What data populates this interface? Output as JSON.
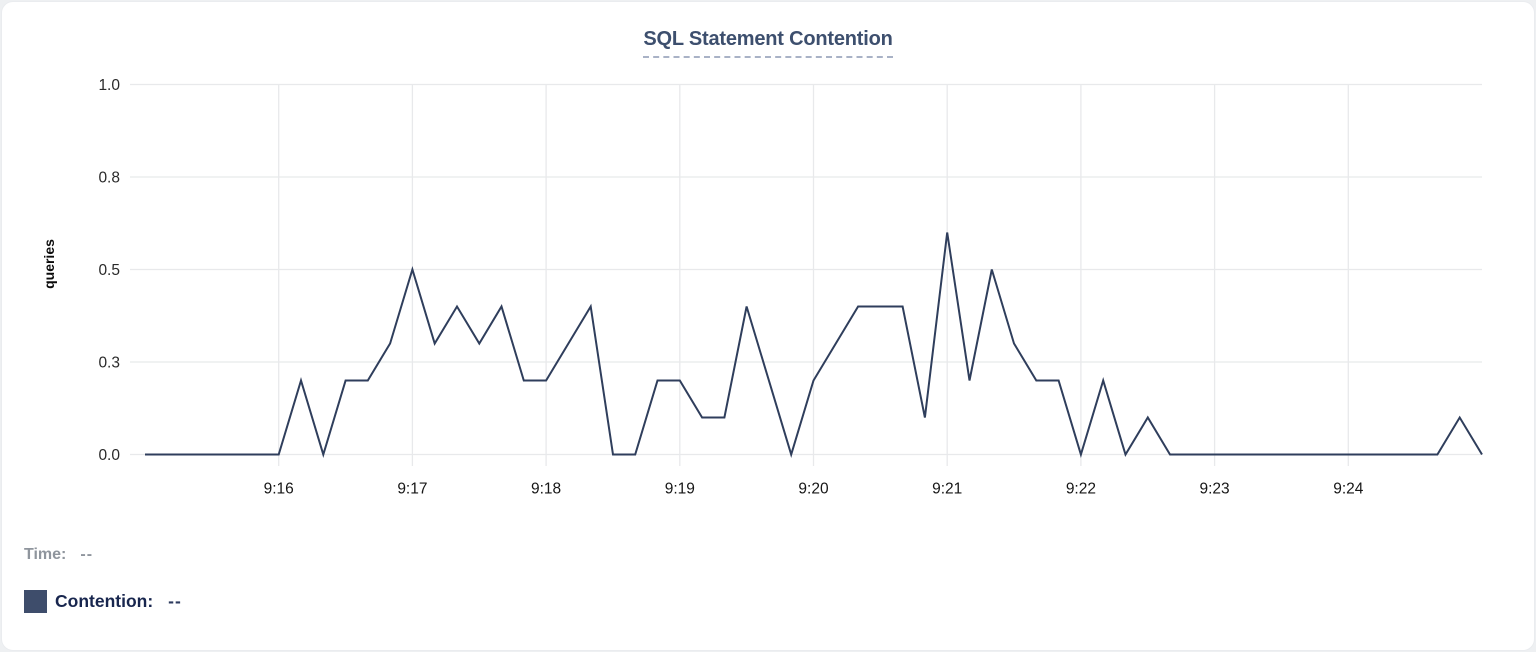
{
  "title": {
    "text": "SQL Statement Contention"
  },
  "tooltip": {
    "time_label": "Time:",
    "time_value": "--",
    "series_label": "Contention:",
    "series_value": "--",
    "swatch_color": "#3e4d6b"
  },
  "colors": {
    "line": "#2f3e5c",
    "grid": "#e8e9eb",
    "title": "#3d4f6e",
    "title_underline": "#a9b2c6",
    "y_tick_text": "#2a2a2a",
    "x_tick_text": "#161616"
  },
  "chart_data": {
    "type": "line",
    "title": "SQL Statement Contention",
    "xlabel": "",
    "ylabel": "queries",
    "ylim": [
      0,
      1
    ],
    "grid": true,
    "legend_position": "bottom-left",
    "y_ticks": [
      {
        "v": 0.0,
        "label": "0.0"
      },
      {
        "v": 0.25,
        "label": "0.3"
      },
      {
        "v": 0.5,
        "label": "0.5"
      },
      {
        "v": 0.75,
        "label": "0.8"
      },
      {
        "v": 1.0,
        "label": "1.0"
      }
    ],
    "x_tick_labels": [
      "9:16",
      "9:17",
      "9:18",
      "9:19",
      "9:20",
      "9:21",
      "9:22",
      "9:23",
      "9:24"
    ],
    "x_tick_indices": [
      6,
      12,
      18,
      24,
      30,
      36,
      42,
      48,
      54
    ],
    "interval_seconds": 10,
    "times": [
      "9:15:00",
      "9:15:10",
      "9:15:20",
      "9:15:30",
      "9:15:40",
      "9:15:50",
      "9:16:00",
      "9:16:10",
      "9:16:20",
      "9:16:30",
      "9:16:40",
      "9:16:50",
      "9:17:00",
      "9:17:10",
      "9:17:20",
      "9:17:30",
      "9:17:40",
      "9:17:50",
      "9:18:00",
      "9:18:10",
      "9:18:20",
      "9:18:30",
      "9:18:40",
      "9:18:50",
      "9:19:00",
      "9:19:10",
      "9:19:20",
      "9:19:30",
      "9:19:40",
      "9:19:50",
      "9:20:00",
      "9:20:10",
      "9:20:20",
      "9:20:30",
      "9:20:40",
      "9:20:50",
      "9:21:00",
      "9:21:10",
      "9:21:20",
      "9:21:30",
      "9:21:40",
      "9:21:50",
      "9:22:00",
      "9:22:10",
      "9:22:20",
      "9:22:30",
      "9:22:40",
      "9:22:50",
      "9:23:00",
      "9:23:10",
      "9:23:20",
      "9:23:30",
      "9:23:40",
      "9:23:50",
      "9:24:00",
      "9:24:10",
      "9:24:20",
      "9:24:30",
      "9:24:40",
      "9:24:50",
      "9:25:00"
    ],
    "series": [
      {
        "name": "Contention",
        "color": "#2f3e5c",
        "values": [
          0,
          0,
          0,
          0,
          0,
          0,
          0,
          0.2,
          0,
          0.2,
          0.2,
          0.3,
          0.5,
          0.3,
          0.4,
          0.3,
          0.4,
          0.2,
          0.2,
          0.3,
          0.4,
          0,
          0,
          0.2,
          0.2,
          0.1,
          0.1,
          0.4,
          0.2,
          0,
          0.2,
          0.3,
          0.4,
          0.4,
          0.4,
          0.1,
          0.6,
          0.2,
          0.5,
          0.3,
          0.2,
          0.2,
          0,
          0.2,
          0,
          0.1,
          0,
          0,
          0,
          0,
          0,
          0,
          0,
          0,
          0,
          0,
          0,
          0,
          0,
          0.1,
          0
        ]
      }
    ]
  }
}
